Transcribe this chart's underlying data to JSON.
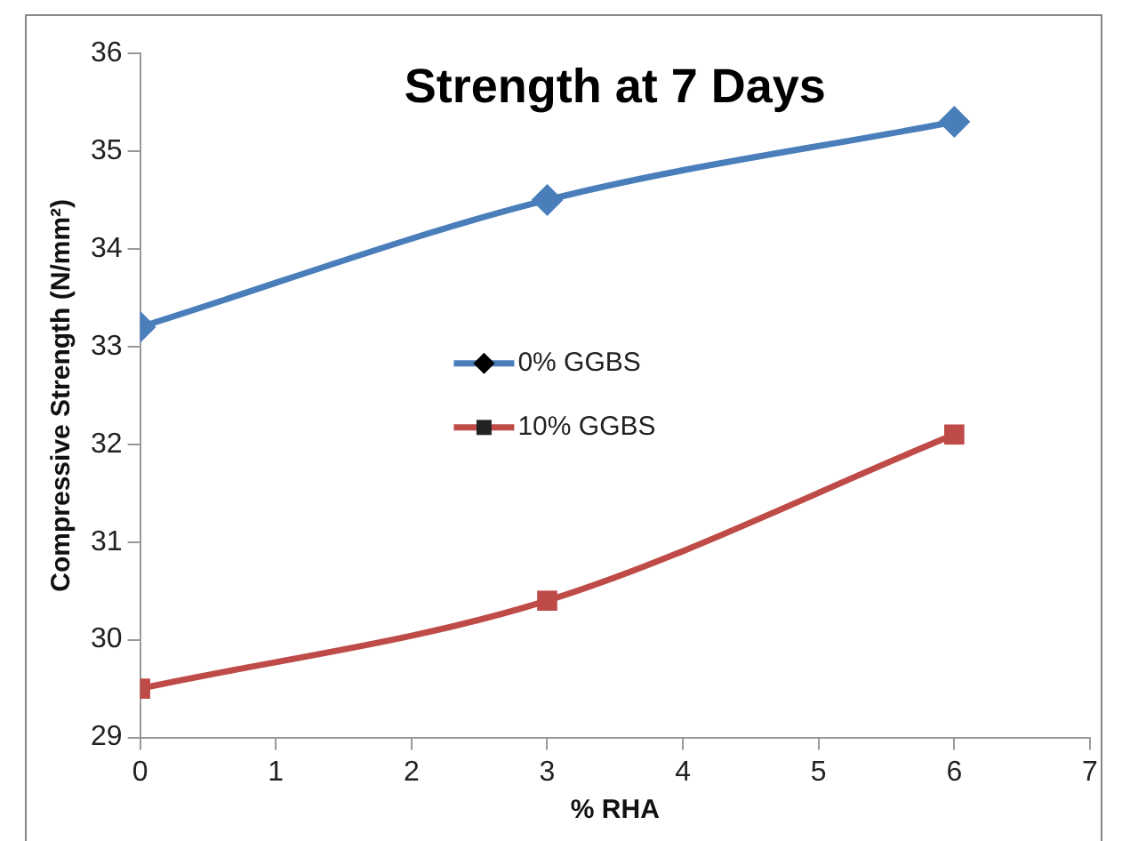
{
  "chart_data": {
    "type": "line",
    "title": "Strength at 7 Days",
    "xlabel": "% RHA",
    "ylabel": "Compressive Strength (N/mm²)",
    "x": [
      0,
      3,
      6
    ],
    "series": [
      {
        "name": "0% GGBS",
        "color": "#4a7ebb",
        "marker": "diamond",
        "values": [
          33.2,
          34.5,
          35.3
        ]
      },
      {
        "name": "10% GGBS",
        "color": "#be4b48",
        "marker": "square",
        "values": [
          29.5,
          30.4,
          32.1
        ]
      }
    ],
    "xlim": [
      0,
      7
    ],
    "xticks": [
      0,
      1,
      2,
      3,
      4,
      5,
      6,
      7
    ],
    "ylim": [
      29,
      36
    ],
    "yticks": [
      29,
      30,
      31,
      32,
      33,
      34,
      35,
      36
    ],
    "grid": false,
    "legend": "center",
    "line_style": "solid"
  }
}
